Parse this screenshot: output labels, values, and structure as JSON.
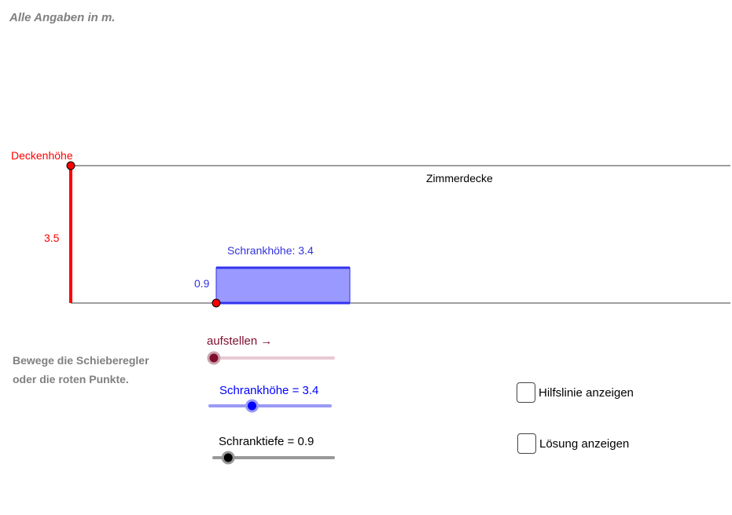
{
  "header": {
    "note": "Alle Angaben in m."
  },
  "instructions": {
    "line1": "Bewege die Schieberegler",
    "line2": "oder die roten Punkte."
  },
  "scene": {
    "ceiling_label": "Deckenhöhe",
    "ceiling_line_label": "Zimmerdecke",
    "ceiling_height_value": "3.5",
    "cabinet_label": "Schrankhöhe: 3.4",
    "cabinet_depth_value": "0.9"
  },
  "sliders": {
    "aufstellen": {
      "label": "aufstellen →",
      "fraction": 0.0,
      "color": "#7f0f2e"
    },
    "schrankhoehe": {
      "label": "Schrankhöhe = 3.4",
      "fraction": 0.35,
      "color": "#0000ff"
    },
    "schranktiefe": {
      "label": "Schranktiefe = 0.9",
      "fraction": 0.12,
      "color": "#000000"
    }
  },
  "checkboxes": {
    "hilfslinie": {
      "label": "Hilfslinie anzeigen",
      "checked": false
    },
    "loesung": {
      "label": "Lösung anzeigen",
      "checked": false
    }
  },
  "colors": {
    "red": "#ff0000",
    "cabinet_fill": "#9999ff",
    "cabinet_stroke": "#3333ee",
    "label_blue": "#3333dd"
  }
}
